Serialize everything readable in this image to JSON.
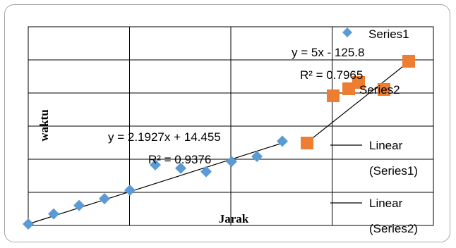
{
  "chart_data": {
    "type": "scatter",
    "xlabel": "Jarak",
    "ylabel": "waktu",
    "grid": true,
    "legend_position": "right",
    "series": [
      {
        "name": "Series1",
        "color": "#5b9bd5",
        "marker": "diamond",
        "points": [
          [
            1,
            16.5
          ],
          [
            2,
            19.5
          ],
          [
            3,
            22
          ],
          [
            4,
            24
          ],
          [
            5,
            26.5
          ],
          [
            6,
            34
          ],
          [
            7,
            33
          ],
          [
            8,
            32
          ],
          [
            9,
            35
          ],
          [
            10,
            36.5
          ],
          [
            11,
            41
          ]
        ]
      },
      {
        "name": "Series2",
        "color": "#ed7d31",
        "marker": "square",
        "points": [
          [
            12,
            40.5
          ],
          [
            13,
            52
          ],
          [
            14,
            53
          ],
          [
            14.5,
            54
          ],
          [
            15,
            53
          ]
        ]
      }
    ],
    "trendlines": [
      {
        "series": "Series1",
        "legend": "Linear (Series1)",
        "equation": "y = 2.1927x + 14.455",
        "r2": "R² = 0.9376",
        "slope": 2.1927,
        "intercept": 14.455,
        "x_range": [
          1,
          11
        ]
      },
      {
        "series": "Series2",
        "legend": "Linear (Series2)",
        "equation": "y = 5x - 125.8",
        "r2": "R² = 0.7965",
        "slope": 5,
        "intercept": -125.8,
        "x_range": [
          33.8,
          37
        ]
      }
    ],
    "legend": {
      "series1": "Series1",
      "series2": "Series2",
      "linear1": [
        "Linear",
        "(Series1)"
      ],
      "linear2": [
        "Linear",
        "(Series2)"
      ]
    }
  }
}
